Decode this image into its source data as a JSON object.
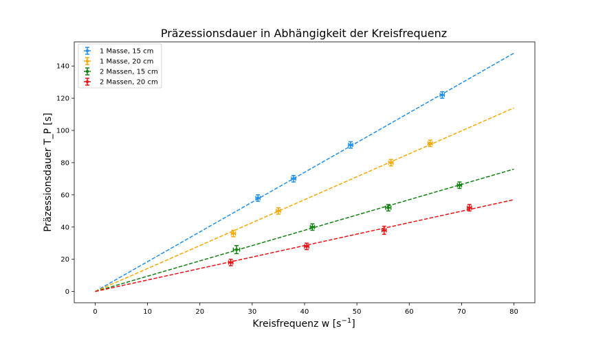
{
  "chart_data": {
    "type": "scatter",
    "title": "Präzessionsdauer in Abhängigkeit der Kreisfrequenz",
    "xlabel": "Kreisfrequenz w [s",
    "xlabel_sup": "−1",
    "xlabel_end": "]",
    "ylabel": "Präzessionsdauer T_P [s]",
    "xlim": [
      -4,
      84
    ],
    "ylim": [
      -7,
      155
    ],
    "xticks": [
      0,
      10,
      20,
      30,
      40,
      50,
      60,
      70,
      80
    ],
    "yticks": [
      0,
      20,
      40,
      60,
      80,
      100,
      120,
      140
    ],
    "grid": false,
    "legend_position": "top-left",
    "series": [
      {
        "name": "1 Masse, 15 cm",
        "color": "#1f8fe8",
        "points": [
          {
            "x": 31.1,
            "y": 58,
            "xerr": 0.4,
            "yerr": 2
          },
          {
            "x": 37.9,
            "y": 70,
            "xerr": 0.4,
            "yerr": 2
          },
          {
            "x": 48.8,
            "y": 91,
            "xerr": 0.4,
            "yerr": 2
          },
          {
            "x": 66.3,
            "y": 122,
            "xerr": 0.4,
            "yerr": 2
          }
        ],
        "fit": {
          "x": [
            0,
            80
          ],
          "y": [
            0,
            148
          ]
        }
      },
      {
        "name": "1 Masse, 20 cm",
        "color": "#f5a800",
        "points": [
          {
            "x": 26.4,
            "y": 36,
            "xerr": 0.4,
            "yerr": 2
          },
          {
            "x": 35.0,
            "y": 50,
            "xerr": 0.4,
            "yerr": 2
          },
          {
            "x": 56.5,
            "y": 80,
            "xerr": 0.4,
            "yerr": 2
          },
          {
            "x": 64.0,
            "y": 92,
            "xerr": 0.4,
            "yerr": 2
          }
        ],
        "fit": {
          "x": [
            0,
            80
          ],
          "y": [
            0,
            114
          ]
        }
      },
      {
        "name": "2 Massen, 15 cm",
        "color": "#108010",
        "points": [
          {
            "x": 27.0,
            "y": 26,
            "xerr": 0.6,
            "yerr": 2.5
          },
          {
            "x": 41.5,
            "y": 40,
            "xerr": 0.4,
            "yerr": 2
          },
          {
            "x": 56.0,
            "y": 52,
            "xerr": 0.5,
            "yerr": 2
          },
          {
            "x": 69.6,
            "y": 66,
            "xerr": 0.4,
            "yerr": 2
          }
        ],
        "fit": {
          "x": [
            0,
            80
          ],
          "y": [
            0,
            76
          ]
        }
      },
      {
        "name": "2 Massen, 20 cm",
        "color": "#e81010",
        "points": [
          {
            "x": 25.9,
            "y": 18,
            "xerr": 0.4,
            "yerr": 2
          },
          {
            "x": 40.4,
            "y": 28,
            "xerr": 0.4,
            "yerr": 2
          },
          {
            "x": 55.2,
            "y": 38,
            "xerr": 0.4,
            "yerr": 2.5
          },
          {
            "x": 71.5,
            "y": 52,
            "xerr": 0.4,
            "yerr": 2
          }
        ],
        "fit": {
          "x": [
            0,
            80
          ],
          "y": [
            0,
            57
          ]
        }
      }
    ]
  }
}
